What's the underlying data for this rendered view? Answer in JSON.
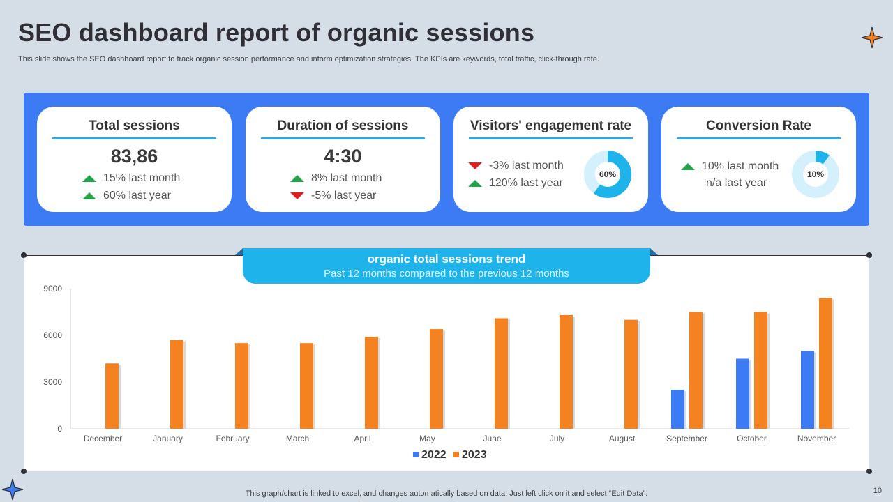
{
  "header": {
    "title": "SEO dashboard report of organic sessions",
    "subtitle": "This slide shows the  SEO dashboard report to track organic session performance and inform optimization strategies. The KPIs are keywords, total traffic, click-through rate."
  },
  "kpis": [
    {
      "title": "Total sessions",
      "value": "83,86",
      "lines": [
        {
          "dir": "up",
          "text": "15% last month"
        },
        {
          "dir": "up",
          "text": "60% last year"
        }
      ]
    },
    {
      "title": "Duration of sessions",
      "value": "4:30",
      "lines": [
        {
          "dir": "up",
          "text": "8% last month"
        },
        {
          "dir": "down",
          "text": "-5% last year"
        }
      ]
    },
    {
      "title": "Visitors' engagement rate",
      "lines": [
        {
          "dir": "down",
          "text": "-3% last month"
        },
        {
          "dir": "up",
          "text": "120% last year"
        }
      ],
      "gauge": {
        "label": "60%",
        "fraction": 0.6
      }
    },
    {
      "title": "Conversion Rate",
      "lines": [
        {
          "dir": "up",
          "text": "10% last month"
        },
        {
          "dir": "none",
          "text": "n/a last year"
        }
      ],
      "gauge": {
        "label": "10%",
        "fraction": 0.1
      }
    }
  ],
  "chart_header": {
    "title": "organic total sessions trend",
    "subtitle": "Past 12 months compared to the previous 12 months"
  },
  "chart_data": {
    "type": "bar",
    "categories": [
      "December",
      "January",
      "February",
      "March",
      "April",
      "May",
      "June",
      "July",
      "August",
      "September",
      "October",
      "November"
    ],
    "series": [
      {
        "name": "2022",
        "color": "#3d7bf5",
        "values": [
          null,
          null,
          null,
          null,
          null,
          null,
          null,
          null,
          null,
          2500,
          4500,
          5000
        ]
      },
      {
        "name": "2023",
        "color": "#f58220",
        "values": [
          4200,
          5700,
          5500,
          5500,
          5900,
          6400,
          7100,
          7300,
          7000,
          7500,
          7500,
          8400
        ]
      }
    ],
    "yticks": [
      0,
      3000,
      6000,
      9000
    ],
    "ylim": [
      0,
      9000
    ],
    "grid": false,
    "legend": "bottom"
  },
  "footer": {
    "note": "This graph/chart is linked to excel, and changes automatically based on data. Just left click on it and select “Edit Data”.",
    "page": "10"
  },
  "colors": {
    "accent_blue": "#3d7bf5",
    "accent_orange": "#f58220",
    "header_cyan": "#1fb3ec",
    "up_green": "#22a34a",
    "down_red": "#e02020"
  }
}
